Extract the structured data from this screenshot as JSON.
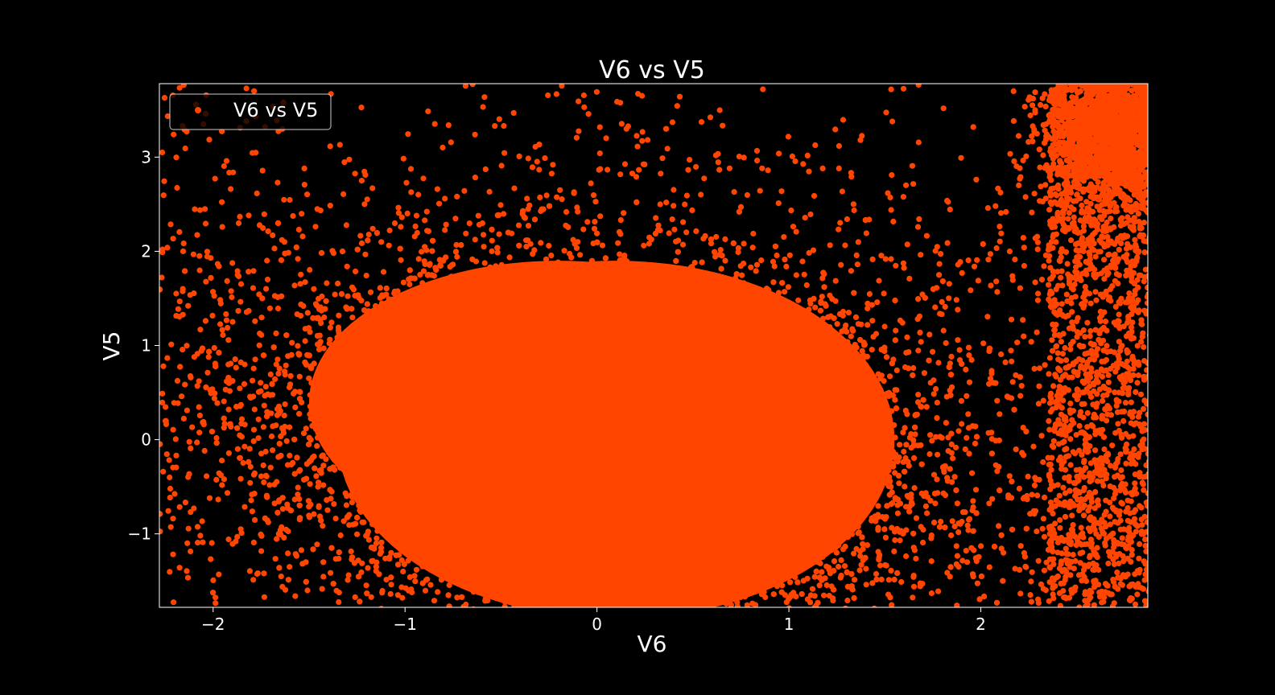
{
  "chart_data": {
    "type": "scatter",
    "title": "V6 vs V5",
    "xlabel": "V6",
    "ylabel": "V5",
    "xlim": [
      -2.28,
      2.87
    ],
    "ylim": [
      -1.78,
      3.78
    ],
    "x_ticks": [
      -2,
      -1,
      0,
      1,
      2
    ],
    "y_ticks": [
      -1,
      0,
      1,
      2,
      3
    ],
    "x_tick_labels": [
      "−2",
      "−1",
      "0",
      "1",
      "2"
    ],
    "y_tick_labels": [
      "−1",
      "0",
      "1",
      "2",
      "3"
    ],
    "grid": false,
    "legend": {
      "position": "top-left",
      "entries": [
        "V6 vs V5"
      ]
    },
    "series": [
      {
        "name": "V6 vs V5",
        "color": "#ff4500",
        "distribution": {
          "core": {
            "x_range": [
              -1.5,
              1.9
            ],
            "y_range": [
              -1.78,
              2.1
            ]
          },
          "upper_right_cluster": {
            "x_range": [
              2.4,
              2.87
            ],
            "y_range": [
              2.5,
              3.78
            ]
          }
        }
      }
    ],
    "background_color": "#000000",
    "text_color": "#ffffff"
  }
}
